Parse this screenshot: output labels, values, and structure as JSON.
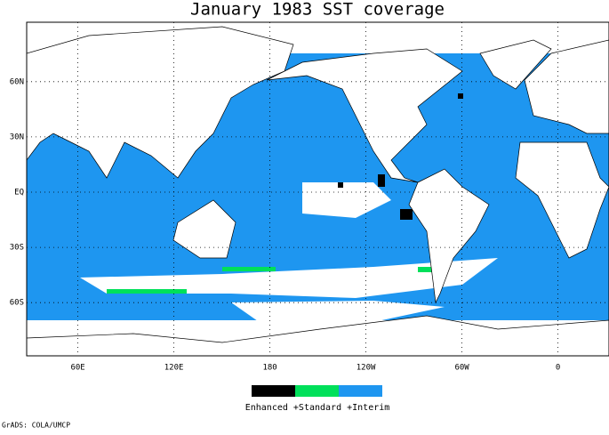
{
  "title": "January 1983 SST coverage",
  "lat_ticks": [
    {
      "value": 60,
      "label": "60N"
    },
    {
      "value": 30,
      "label": "30N"
    },
    {
      "value": 0,
      "label": "EQ"
    },
    {
      "value": -30,
      "label": "30S"
    },
    {
      "value": -60,
      "label": "60S"
    }
  ],
  "lon_ticks": [
    {
      "value": 60,
      "label": "60E"
    },
    {
      "value": 120,
      "label": "120E"
    },
    {
      "value": 180,
      "label": "180"
    },
    {
      "value": 240,
      "label": "120W"
    },
    {
      "value": 300,
      "label": "60W"
    },
    {
      "value": 360,
      "label": "0"
    }
  ],
  "legend": {
    "label": "Enhanced +Standard +Interim",
    "colors": [
      "#000000",
      "#00e05a",
      "#1e96f0"
    ]
  },
  "footer": "GrADS: COLA/UMCP"
}
